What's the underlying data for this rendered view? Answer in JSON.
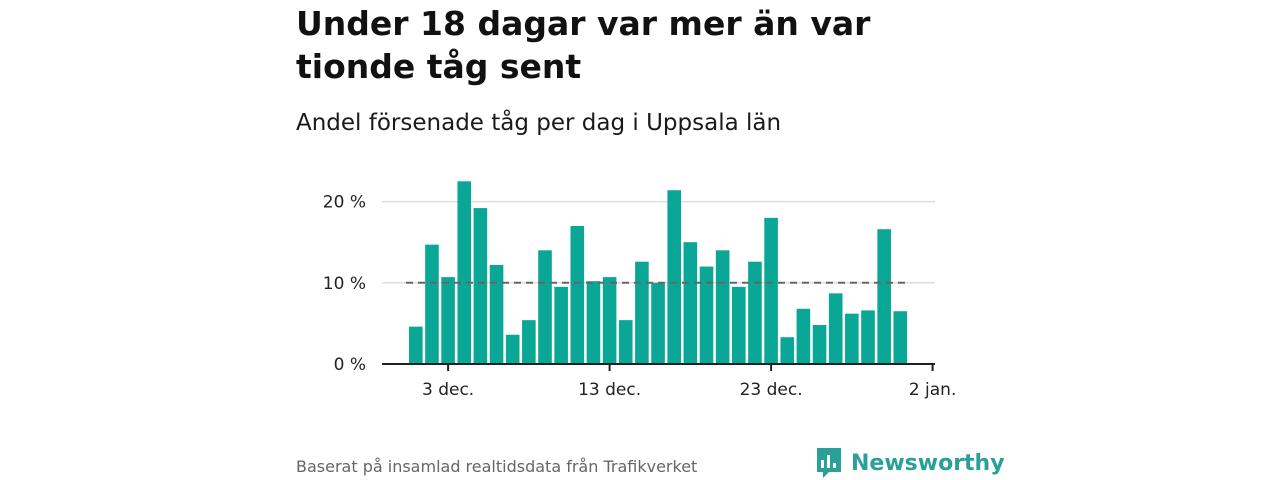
{
  "header": {
    "title": "Under 18 dagar var mer än var tionde tåg sent",
    "subtitle": "Andel försenade tåg per dag i Uppsala län"
  },
  "footer": {
    "source": "Baserat på insamlad realtidsdata från Trafikverket",
    "brand": "Newsworthy"
  },
  "colors": {
    "bar": "#0aa696",
    "reference_line": "#666666",
    "grid": "#dddddd",
    "axis": "#222222",
    "brand": "#2aa198"
  },
  "chart_data": {
    "type": "bar",
    "x_unit": "day",
    "x": [
      "2023-12-01",
      "2023-12-02",
      "2023-12-03",
      "2023-12-04",
      "2023-12-05",
      "2023-12-06",
      "2023-12-07",
      "2023-12-08",
      "2023-12-09",
      "2023-12-10",
      "2023-12-11",
      "2023-12-12",
      "2023-12-13",
      "2023-12-14",
      "2023-12-15",
      "2023-12-16",
      "2023-12-17",
      "2023-12-18",
      "2023-12-19",
      "2023-12-20",
      "2023-12-21",
      "2023-12-22",
      "2023-12-23",
      "2023-12-24",
      "2023-12-25",
      "2023-12-26",
      "2023-12-27",
      "2023-12-28",
      "2023-12-29",
      "2023-12-30",
      "2023-12-31"
    ],
    "values": [
      4.6,
      14.7,
      10.7,
      22.5,
      19.2,
      12.2,
      3.6,
      5.4,
      14.0,
      9.5,
      17.0,
      10.2,
      10.7,
      5.4,
      12.6,
      10.0,
      21.4,
      15.0,
      12.0,
      14.0,
      9.5,
      12.6,
      18.0,
      3.3,
      6.8,
      4.8,
      8.7,
      6.2,
      6.6,
      16.6,
      6.5
    ],
    "reference_value": 10,
    "ylim": [
      0,
      25
    ],
    "y_ticks": [
      {
        "value": 0,
        "label": "0 %"
      },
      {
        "value": 10,
        "label": "10 %"
      },
      {
        "value": 20,
        "label": "20 %"
      }
    ],
    "x_ticks": [
      {
        "date": "2023-12-03",
        "label": "3 dec."
      },
      {
        "date": "2023-12-13",
        "label": "13 dec."
      },
      {
        "date": "2023-12-23",
        "label": "23 dec."
      },
      {
        "date": "2024-01-02",
        "label": "2 jan."
      }
    ],
    "grid": true,
    "legend": "none"
  }
}
